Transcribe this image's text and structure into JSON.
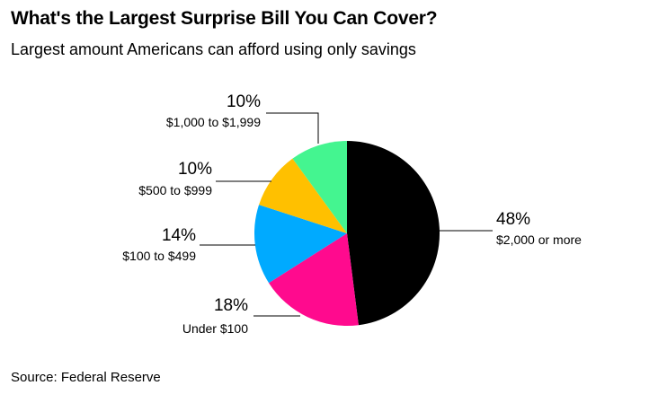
{
  "title": "What's the Largest Surprise Bill You Can Cover?",
  "subtitle": "Largest amount Americans can afford using only savings",
  "source": "Source: Federal Reserve",
  "chart_data": {
    "type": "pie",
    "title": "What's the Largest Surprise Bill You Can Cover?",
    "subtitle": "Largest amount Americans can afford using only savings",
    "slices": [
      {
        "label": "$2,000 or more",
        "value": 48,
        "value_label": "48%",
        "color": "#000000"
      },
      {
        "label": "Under $100",
        "value": 18,
        "value_label": "18%",
        "color": "#ff0a8e"
      },
      {
        "label": "$100 to $499",
        "value": 14,
        "value_label": "14%",
        "color": "#00aaff"
      },
      {
        "label": "$500 to $999",
        "value": 10,
        "value_label": "10%",
        "color": "#ffc000"
      },
      {
        "label": "$1,000 to $1,999",
        "value": 10,
        "value_label": "10%",
        "color": "#44f590"
      }
    ],
    "order": "clockwise from top"
  }
}
